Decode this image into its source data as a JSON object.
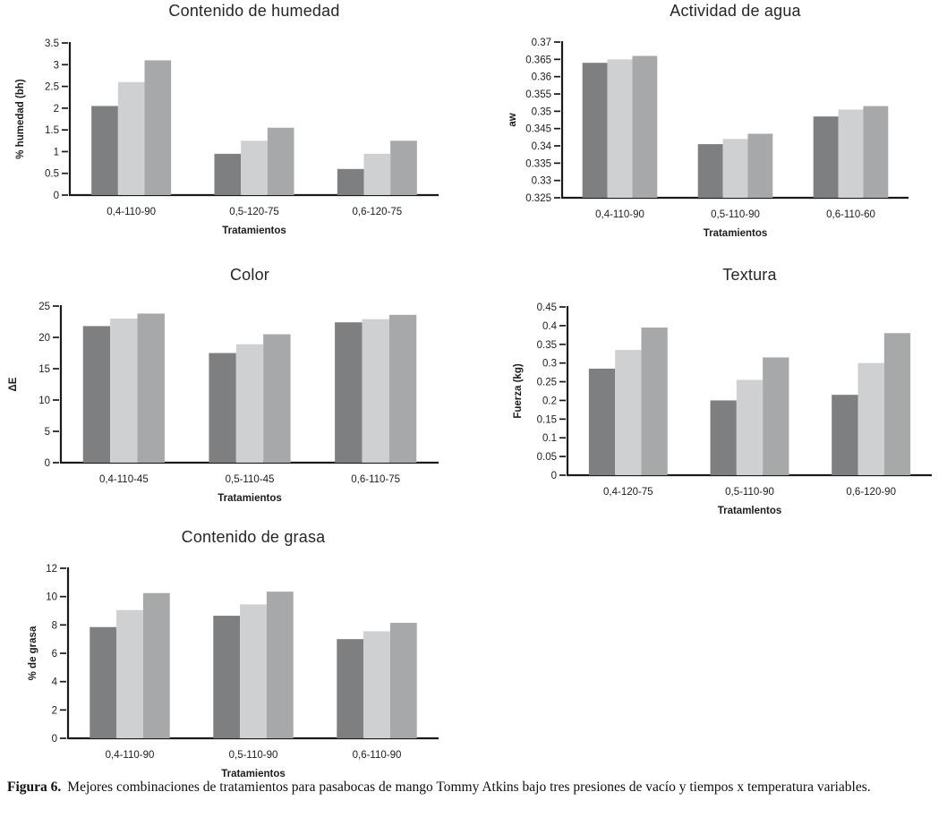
{
  "figure": {
    "caption_label": "Figura 6.",
    "caption_text": "Mejores combinaciones de tratamientos para pasabocas de mango Tommy Atkins bajo tres presiones de vacío y tiempos x temperatura variables."
  },
  "colors": {
    "series_dark": "#7e7f81",
    "series_light": "#ced0d2",
    "series_medium": "#a7a8aa",
    "axis": "#1a1a1a",
    "text": "#1c1c1c"
  },
  "chart_data": [
    {
      "type": "bar",
      "title": "Contenido de humedad",
      "xlabel": "Tratamientos",
      "ylabel": "% humedad (bh)",
      "categories": [
        "0,4-110-90",
        "0,5-120-75",
        "0,6-120-75"
      ],
      "series": [
        {
          "shade": "dark-gray",
          "color": "#7e7f81",
          "values": [
            2.05,
            0.95,
            0.6
          ]
        },
        {
          "shade": "light-gray",
          "color": "#ced0d2",
          "values": [
            2.6,
            1.25,
            0.95
          ]
        },
        {
          "shade": "medium-gray",
          "color": "#a7a8aa",
          "values": [
            3.1,
            1.55,
            1.25
          ]
        }
      ],
      "ylim": [
        0,
        3.5
      ],
      "ytick_step": 0.5,
      "grid": false,
      "legend": "none"
    },
    {
      "type": "bar",
      "title": "Actividad de agua",
      "xlabel": "Tratamientos",
      "ylabel": "aw",
      "categories": [
        "0,4-110-90",
        "0,5-110-90",
        "0,6-110-60"
      ],
      "series": [
        {
          "shade": "dark-gray",
          "color": "#7e7f81",
          "values": [
            0.364,
            0.3405,
            0.3485
          ]
        },
        {
          "shade": "light-gray",
          "color": "#ced0d2",
          "values": [
            0.365,
            0.342,
            0.3505
          ]
        },
        {
          "shade": "medium-gray",
          "color": "#a7a8aa",
          "values": [
            0.366,
            0.3435,
            0.3515
          ]
        }
      ],
      "ylim": [
        0.325,
        0.37
      ],
      "ytick_step": 0.005,
      "grid": false,
      "legend": "none"
    },
    {
      "type": "bar",
      "title": "Color",
      "xlabel": "Tratamientos",
      "ylabel": "ΔE",
      "categories": [
        "0,4-110-45",
        "0,5-110-45",
        "0,6-110-75"
      ],
      "series": [
        {
          "shade": "dark-gray",
          "color": "#7e7f81",
          "values": [
            21.8,
            17.5,
            22.4
          ]
        },
        {
          "shade": "light-gray",
          "color": "#ced0d2",
          "values": [
            23.0,
            18.9,
            22.9
          ]
        },
        {
          "shade": "medium-gray",
          "color": "#a7a8aa",
          "values": [
            23.8,
            20.5,
            23.6
          ]
        }
      ],
      "ylim": [
        0,
        25
      ],
      "ytick_step": 5,
      "grid": false,
      "legend": "none"
    },
    {
      "type": "bar",
      "title": "Textura",
      "xlabel": "Tratamlentos",
      "ylabel": "Fuerza (kg)",
      "categories": [
        "0,4-120-75",
        "0,5-110-90",
        "0,6-120-90"
      ],
      "series": [
        {
          "shade": "dark-gray",
          "color": "#7e7f81",
          "values": [
            0.285,
            0.2,
            0.215
          ]
        },
        {
          "shade": "light-gray",
          "color": "#ced0d2",
          "values": [
            0.335,
            0.255,
            0.3
          ]
        },
        {
          "shade": "medium-gray",
          "color": "#a7a8aa",
          "values": [
            0.395,
            0.315,
            0.38
          ]
        }
      ],
      "ylim": [
        0,
        0.45
      ],
      "ytick_step": 0.05,
      "grid": false,
      "legend": "none"
    },
    {
      "type": "bar",
      "title": "Contenido de grasa",
      "xlabel": "Tratamientos",
      "ylabel": "% de grasa",
      "categories": [
        "0,4-110-90",
        "0,5-110-90",
        "0,6-110-90"
      ],
      "series": [
        {
          "shade": "dark-gray",
          "color": "#7e7f81",
          "values": [
            7.85,
            8.65,
            7.0
          ]
        },
        {
          "shade": "light-gray",
          "color": "#ced0d2",
          "values": [
            9.05,
            9.45,
            7.55
          ]
        },
        {
          "shade": "medium-gray",
          "color": "#a7a8aa",
          "values": [
            10.25,
            10.35,
            8.15
          ]
        }
      ],
      "ylim": [
        0,
        12
      ],
      "ytick_step": 2,
      "grid": false,
      "legend": "none"
    }
  ]
}
